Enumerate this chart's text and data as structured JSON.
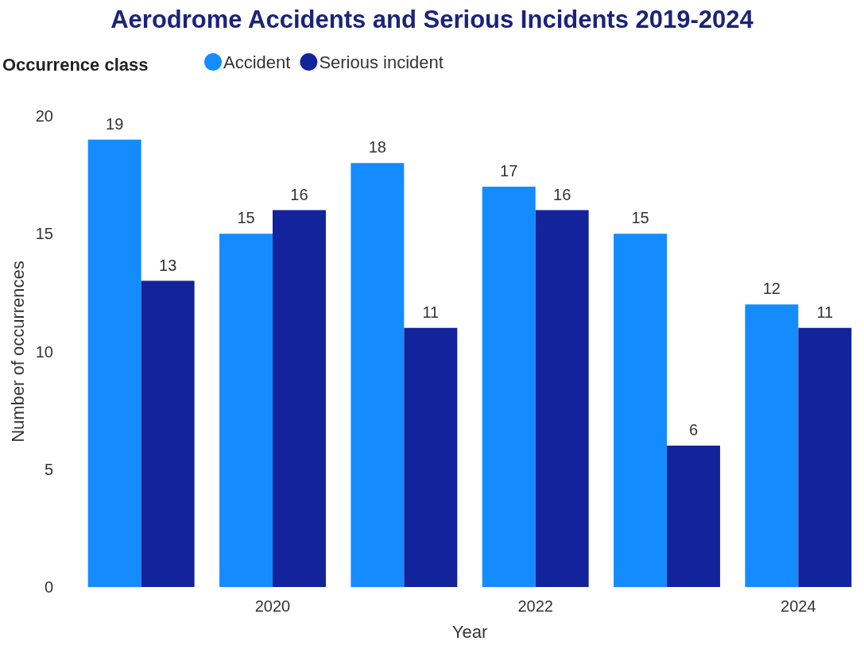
{
  "chart_data": {
    "type": "bar",
    "title": "Aerodrome Accidents and Serious Incidents 2019-2024",
    "xlabel": "Year",
    "ylabel": "Number of occurrences",
    "legend_title": "Occurrence class",
    "legend": "top left",
    "categories": [
      null,
      "2020",
      null,
      "2022",
      null,
      "2024"
    ],
    "series": [
      {
        "name": "Accident",
        "color": "#148cff",
        "values": [
          19,
          15,
          18,
          17,
          15,
          12
        ]
      },
      {
        "name": "Serious incident",
        "color": "#12239c",
        "values": [
          13,
          16,
          11,
          16,
          6,
          11
        ]
      }
    ],
    "ylim": [
      0,
      20
    ],
    "yticks": [
      0,
      5,
      10,
      15,
      20
    ],
    "grid": false,
    "data_labels": true
  }
}
